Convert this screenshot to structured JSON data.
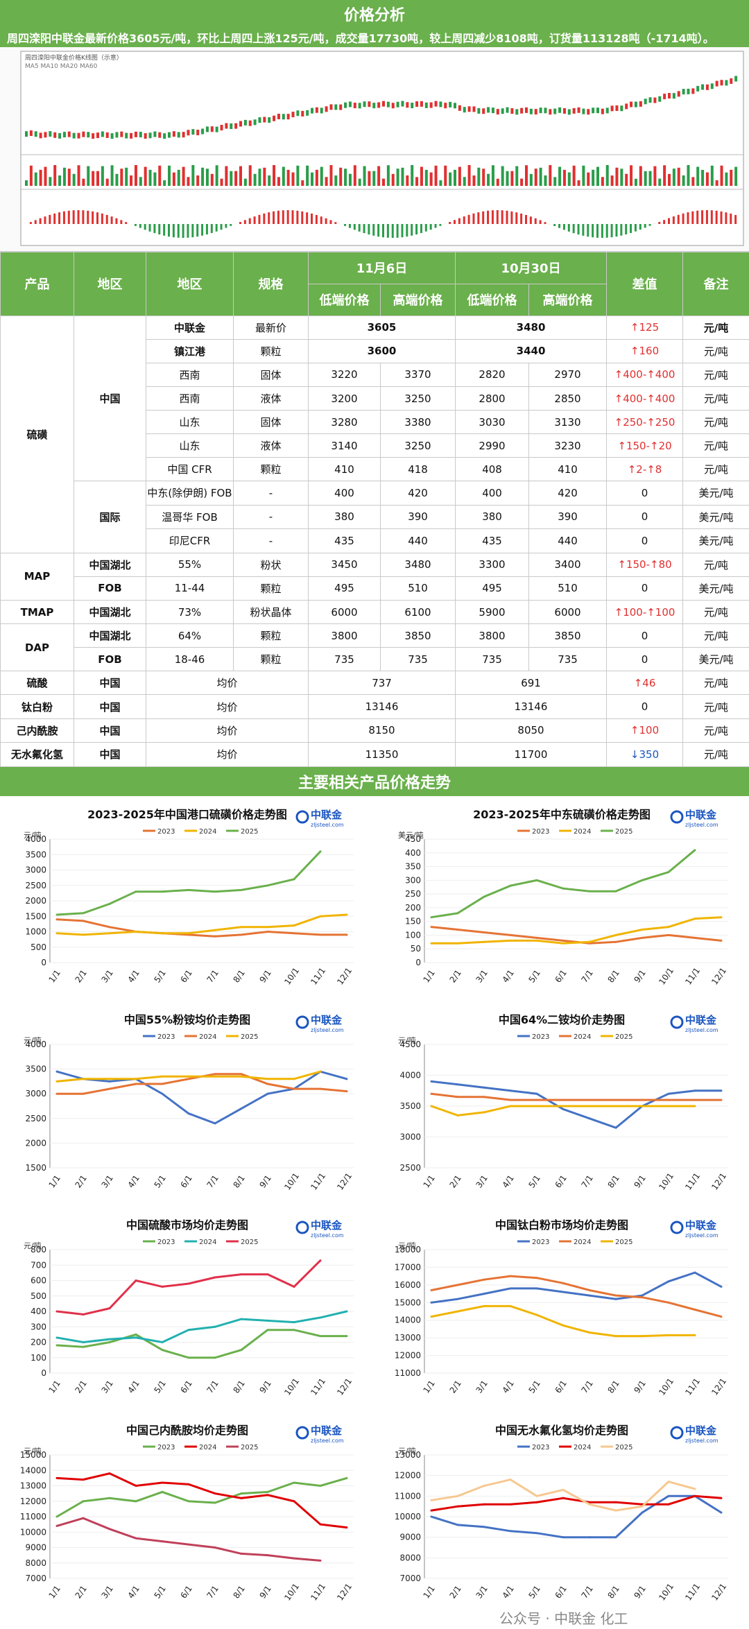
{
  "title": "价格分析",
  "summary": "周四滦阳中联金最新价格3605元/吨，环比上周四上涨125元/吨，成交量17730吨，较上周四减少8108吨，订货量113128吨（-1714吨）。",
  "table": {
    "headers": {
      "product": "产品",
      "region1": "地区",
      "region2": "地区",
      "spec": "规格",
      "date1": "11月6日",
      "date2": "10月30日",
      "low": "低端价格",
      "high": "高端价格",
      "diff": "差值",
      "note": "备注"
    },
    "groups": {
      "sulfur": "硫磺",
      "china": "中国",
      "intl": "国际",
      "map": "MAP",
      "tmap": "TMAP",
      "dap": "DAP"
    },
    "rows": [
      {
        "r2": "中联金",
        "spec": "最新价",
        "n1": "3605",
        "n2": "3480",
        "diff": "↑125",
        "dir": "up",
        "note": "元/吨"
      },
      {
        "r2": "镇江港",
        "spec": "颗粒",
        "n1": "3600",
        "n2": "3440",
        "diff": "↑160",
        "dir": "up",
        "note": "元/吨"
      },
      {
        "r2": "西南",
        "spec": "固体",
        "l1": "3220",
        "h1": "3370",
        "l2": "2820",
        "h2": "2970",
        "diff": "↑400-↑400",
        "dir": "up",
        "note": "元/吨"
      },
      {
        "r2": "西南",
        "spec": "液体",
        "l1": "3200",
        "h1": "3250",
        "l2": "2800",
        "h2": "2850",
        "diff": "↑400-↑400",
        "dir": "up",
        "note": "元/吨"
      },
      {
        "r2": "山东",
        "spec": "固体",
        "l1": "3280",
        "h1": "3380",
        "l2": "3030",
        "h2": "3130",
        "diff": "↑250-↑250",
        "dir": "up",
        "note": "元/吨"
      },
      {
        "r2": "山东",
        "spec": "液体",
        "l1": "3140",
        "h1": "3250",
        "l2": "2990",
        "h2": "3230",
        "diff": "↑150-↑20",
        "dir": "up",
        "note": "元/吨"
      },
      {
        "r2": "中国 CFR",
        "spec": "颗粒",
        "l1": "410",
        "h1": "418",
        "l2": "408",
        "h2": "410",
        "diff": "↑2-↑8",
        "dir": "up",
        "note": "元/吨"
      },
      {
        "r2": "中东(除伊朗) FOB",
        "spec": "-",
        "l1": "400",
        "h1": "420",
        "l2": "400",
        "h2": "420",
        "diff": "0",
        "dir": "",
        "note": "美元/吨"
      },
      {
        "r2": "温哥华 FOB",
        "spec": "-",
        "l1": "380",
        "h1": "390",
        "l2": "380",
        "h2": "390",
        "diff": "0",
        "dir": "",
        "note": "美元/吨"
      },
      {
        "r2": "印尼CFR",
        "spec": "-",
        "l1": "435",
        "h1": "440",
        "l2": "435",
        "h2": "440",
        "diff": "0",
        "dir": "",
        "note": "美元/吨"
      },
      {
        "r1": "中国湖北",
        "r2": "55%",
        "spec": "粉状",
        "l1": "3450",
        "h1": "3480",
        "l2": "3300",
        "h2": "3400",
        "diff": "↑150-↑80",
        "dir": "up",
        "note": "元/吨"
      },
      {
        "r1": "FOB",
        "r2": "11-44",
        "spec": "颗粒",
        "l1": "495",
        "h1": "510",
        "l2": "495",
        "h2": "510",
        "diff": "0",
        "dir": "",
        "note": "美元/吨"
      },
      {
        "r1": "中国湖北",
        "r2": "73%",
        "spec": "粉状晶体",
        "l1": "6000",
        "h1": "6100",
        "l2": "5900",
        "h2": "6000",
        "diff": "↑100-↑100",
        "dir": "up",
        "note": "元/吨"
      },
      {
        "r1": "中国湖北",
        "r2": "64%",
        "spec": "颗粒",
        "l1": "3800",
        "h1": "3850",
        "l2": "3800",
        "h2": "3850",
        "diff": "0",
        "dir": "",
        "note": "元/吨"
      },
      {
        "r1": "FOB",
        "r2": "18-46",
        "spec": "颗粒",
        "l1": "735",
        "h1": "735",
        "l2": "735",
        "h2": "735",
        "diff": "0",
        "dir": "",
        "note": "美元/吨"
      },
      {
        "p": "硫酸",
        "r1": "中国",
        "spec": "均价",
        "n1": "737",
        "n2": "691",
        "diff": "↑46",
        "dir": "up",
        "note": "元/吨"
      },
      {
        "p": "钛白粉",
        "r1": "中国",
        "spec": "均价",
        "n1": "13146",
        "n2": "13146",
        "diff": "0",
        "dir": "",
        "note": "元/吨"
      },
      {
        "p": "己内酰胺",
        "r1": "中国",
        "spec": "均价",
        "n1": "8150",
        "n2": "8050",
        "diff": "↑100",
        "dir": "up",
        "note": "元/吨"
      },
      {
        "p": "无水氟化氢",
        "r1": "中国",
        "spec": "均价",
        "n1": "11350",
        "n2": "11700",
        "diff": "↓350",
        "dir": "dn",
        "note": "元/吨"
      }
    ]
  },
  "section2": "主要相关产品价格走势",
  "brand": {
    "name": "中联金",
    "url": "zljsteel.com"
  },
  "watermark": "公众号 · 中联金 化工",
  "stock_chart": {
    "label": "周四滦阳中联金价格K线图（示意）",
    "legend": "MA5  MA10  MA20  MA60"
  },
  "colors": {
    "green": "#6ab04c",
    "y2023": "#4472c4",
    "y2024": "#ed7d31",
    "y2025": "#f0b400",
    "red": "#e03030"
  },
  "chart_data": [
    {
      "type": "line",
      "title": "2023-2025年中国港口硫磺价格走势图",
      "unit": "元/吨",
      "ylim": [
        0,
        4000
      ],
      "ticks": [
        0,
        500,
        1000,
        1500,
        2000,
        2500,
        3000,
        3500,
        4000
      ],
      "categories": [
        "1/1",
        "2/1",
        "3/1",
        "4/1",
        "5/1",
        "6/1",
        "7/1",
        "8/1",
        "9/1",
        "10/1",
        "11/1",
        "12/1"
      ],
      "series": [
        {
          "name": "2023",
          "color": "#e57334",
          "values": [
            1400,
            1350,
            1150,
            1000,
            950,
            900,
            850,
            900,
            1000,
            950,
            900,
            900
          ]
        },
        {
          "name": "2024",
          "color": "#f0b400",
          "values": [
            950,
            900,
            950,
            1000,
            950,
            950,
            1050,
            1150,
            1150,
            1200,
            1500,
            1550
          ]
        },
        {
          "name": "2025",
          "color": "#6ab04c",
          "values": [
            1550,
            1600,
            1900,
            2300,
            2300,
            2350,
            2300,
            2350,
            2500,
            2700,
            3600,
            null
          ]
        }
      ]
    },
    {
      "type": "line",
      "title": "2023-2025年中东硫磺价格走势图",
      "unit": "美元/吨",
      "ylim": [
        0,
        450
      ],
      "ticks": [
        0,
        50,
        100,
        150,
        200,
        250,
        300,
        350,
        400,
        450
      ],
      "categories": [
        "1/1",
        "2/1",
        "3/1",
        "4/1",
        "5/1",
        "6/1",
        "7/1",
        "8/1",
        "9/1",
        "10/1",
        "11/1",
        "12/1"
      ],
      "series": [
        {
          "name": "2023",
          "color": "#e57334",
          "values": [
            130,
            120,
            110,
            100,
            90,
            80,
            70,
            75,
            90,
            100,
            90,
            80
          ]
        },
        {
          "name": "2024",
          "color": "#f0b400",
          "values": [
            70,
            70,
            75,
            80,
            80,
            70,
            75,
            100,
            120,
            130,
            160,
            165
          ]
        },
        {
          "name": "2025",
          "color": "#6ab04c",
          "values": [
            165,
            180,
            240,
            280,
            300,
            270,
            260,
            260,
            300,
            330,
            410,
            null
          ]
        }
      ]
    },
    {
      "type": "line",
      "title": "中国55%粉铵均价走势图",
      "unit": "元/吨",
      "ylim": [
        1500,
        4000
      ],
      "ticks": [
        1500,
        2000,
        2500,
        3000,
        3500,
        4000
      ],
      "categories": [
        "1/1",
        "2/1",
        "3/1",
        "4/1",
        "5/1",
        "6/1",
        "7/1",
        "8/1",
        "9/1",
        "10/1",
        "11/1",
        "12/1"
      ],
      "series": [
        {
          "name": "2023",
          "color": "#4472c4",
          "values": [
            3450,
            3300,
            3250,
            3300,
            3000,
            2600,
            2400,
            2700,
            3000,
            3100,
            3450,
            3300
          ]
        },
        {
          "name": "2024",
          "color": "#e57334",
          "values": [
            3000,
            3000,
            3100,
            3200,
            3200,
            3300,
            3400,
            3400,
            3200,
            3100,
            3100,
            3050
          ]
        },
        {
          "name": "2025",
          "color": "#f0b400",
          "values": [
            3250,
            3300,
            3300,
            3300,
            3350,
            3350,
            3350,
            3350,
            3300,
            3300,
            3450,
            null
          ]
        }
      ]
    },
    {
      "type": "line",
      "title": "中国64%二铵均价走势图",
      "unit": "元/吨",
      "ylim": [
        2500,
        4500
      ],
      "ticks": [
        2500,
        3000,
        3500,
        4000,
        4500
      ],
      "categories": [
        "1/1",
        "2/1",
        "3/1",
        "4/1",
        "5/1",
        "6/1",
        "7/1",
        "8/1",
        "9/1",
        "10/1",
        "11/1",
        "12/1"
      ],
      "series": [
        {
          "name": "2023",
          "color": "#4472c4",
          "values": [
            3900,
            3850,
            3800,
            3750,
            3700,
            3450,
            3300,
            3150,
            3500,
            3700,
            3750,
            3750
          ]
        },
        {
          "name": "2024",
          "color": "#e57334",
          "values": [
            3700,
            3650,
            3650,
            3600,
            3600,
            3600,
            3600,
            3600,
            3600,
            3600,
            3600,
            3600
          ]
        },
        {
          "name": "2025",
          "color": "#f0b400",
          "values": [
            3500,
            3350,
            3400,
            3500,
            3500,
            3500,
            3500,
            3500,
            3500,
            3500,
            3500,
            null
          ]
        }
      ]
    },
    {
      "type": "line",
      "title": "中国硫酸市场均价走势图",
      "unit": "元/吨",
      "ylim": [
        0,
        800
      ],
      "ticks": [
        0,
        100,
        200,
        300,
        400,
        500,
        600,
        700,
        800
      ],
      "categories": [
        "1/1",
        "2/1",
        "3/1",
        "4/1",
        "5/1",
        "6/1",
        "7/1",
        "8/1",
        "9/1",
        "10/1",
        "11/1",
        "12/1"
      ],
      "series": [
        {
          "name": "2023",
          "color": "#6ab04c",
          "values": [
            180,
            170,
            200,
            250,
            150,
            100,
            100,
            150,
            280,
            280,
            240,
            240
          ]
        },
        {
          "name": "2024",
          "color": "#22b0b0",
          "values": [
            230,
            200,
            220,
            230,
            200,
            280,
            300,
            350,
            340,
            330,
            360,
            400
          ]
        },
        {
          "name": "2025",
          "color": "#e0304a",
          "values": [
            400,
            380,
            420,
            600,
            560,
            580,
            620,
            640,
            640,
            560,
            730,
            null
          ]
        }
      ]
    },
    {
      "type": "line",
      "title": "中国钛白粉市场均价走势图",
      "unit": "元/吨",
      "ylim": [
        11000,
        18000
      ],
      "ticks": [
        11000,
        12000,
        13000,
        14000,
        15000,
        16000,
        17000,
        18000
      ],
      "categories": [
        "1/1",
        "2/1",
        "3/1",
        "4/1",
        "5/1",
        "6/1",
        "7/1",
        "8/1",
        "9/1",
        "10/1",
        "11/1",
        "12/1"
      ],
      "series": [
        {
          "name": "2023",
          "color": "#4472c4",
          "values": [
            15000,
            15200,
            15500,
            15800,
            15800,
            15600,
            15400,
            15200,
            15400,
            16200,
            16700,
            15900
          ]
        },
        {
          "name": "2024",
          "color": "#e57334",
          "values": [
            15700,
            16000,
            16300,
            16500,
            16400,
            16100,
            15700,
            15400,
            15300,
            15000,
            14600,
            14200
          ]
        },
        {
          "name": "2025",
          "color": "#f0b400",
          "values": [
            14200,
            14500,
            14800,
            14800,
            14300,
            13700,
            13300,
            13100,
            13100,
            13146,
            13146,
            null
          ]
        }
      ]
    },
    {
      "type": "line",
      "title": "中国己内酰胺均价走势图",
      "unit": "元/吨",
      "ylim": [
        7000,
        15000
      ],
      "ticks": [
        7000,
        8000,
        9000,
        10000,
        11000,
        12000,
        13000,
        14000,
        15000
      ],
      "categories": [
        "1/1",
        "2/1",
        "3/1",
        "4/1",
        "5/1",
        "6/1",
        "7/1",
        "8/1",
        "9/1",
        "10/1",
        "11/1",
        "12/1"
      ],
      "series": [
        {
          "name": "2023",
          "color": "#6ab04c",
          "values": [
            11000,
            12000,
            12200,
            12000,
            12600,
            12000,
            11900,
            12500,
            12600,
            13200,
            13000,
            13500
          ]
        },
        {
          "name": "2024",
          "color": "#e00000",
          "values": [
            13500,
            13400,
            13800,
            13000,
            13200,
            13100,
            12500,
            12200,
            12400,
            12000,
            10500,
            10300
          ]
        },
        {
          "name": "2025",
          "color": "#c0405a",
          "values": [
            10400,
            10900,
            10200,
            9600,
            9400,
            9200,
            9000,
            8600,
            8500,
            8300,
            8150,
            null
          ]
        }
      ]
    },
    {
      "type": "line",
      "title": "中国无水氟化氢均价走势图",
      "unit": "元/吨",
      "ylim": [
        7000,
        13000
      ],
      "ticks": [
        7000,
        8000,
        9000,
        10000,
        11000,
        12000,
        13000
      ],
      "categories": [
        "1/1",
        "2/1",
        "3/1",
        "4/1",
        "5/1",
        "6/1",
        "7/1",
        "8/1",
        "9/1",
        "10/1",
        "11/1",
        "12/1"
      ],
      "series": [
        {
          "name": "2023",
          "color": "#4472c4",
          "values": [
            10000,
            9600,
            9500,
            9300,
            9200,
            9000,
            9000,
            9000,
            10200,
            11000,
            11000,
            10200
          ]
        },
        {
          "name": "2024",
          "color": "#e00000",
          "values": [
            10300,
            10500,
            10600,
            10600,
            10700,
            10900,
            10700,
            10700,
            10600,
            10600,
            11000,
            10900
          ]
        },
        {
          "name": "2025",
          "color": "#f6c890",
          "values": [
            10800,
            11000,
            11500,
            11800,
            11000,
            11300,
            10600,
            10300,
            10500,
            11700,
            11350,
            null
          ]
        }
      ]
    }
  ]
}
